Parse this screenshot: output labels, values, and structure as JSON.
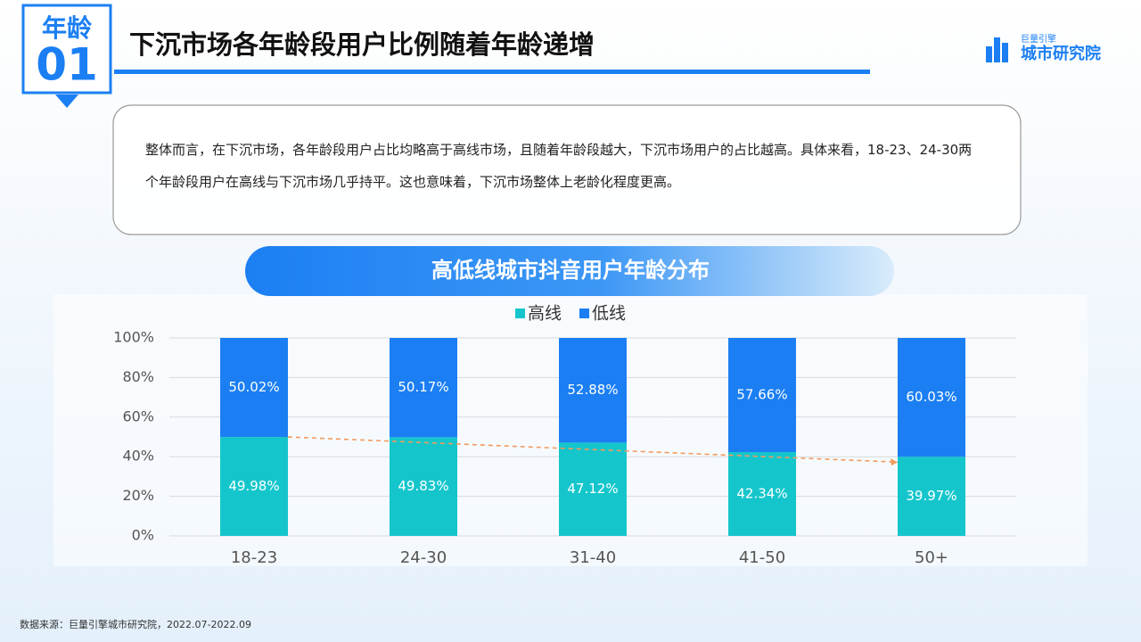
{
  "badge": {
    "label": "年龄",
    "number": "01"
  },
  "title": "下沉市场各年龄段用户比例随着年龄递增",
  "logo": {
    "top": "巨量引擎",
    "bottom": "城市研究院"
  },
  "summary": "整体而言，在下沉市场，各年龄段用户占比均略高于高线市场，且随着年龄段越大，下沉市场用户的占比越高。具体来看，18-23、24-30两个年龄段用户在高线与下沉市场几乎持平。这也意味着，下沉市场整体上老龄化程度更高。",
  "source": "数据来源：巨量引擎城市研究院，2022.07-2022.09",
  "chart_data": {
    "type": "stacked_bar",
    "title": "高低线城市抖音用户年龄分布",
    "categories": [
      "18-23",
      "24-30",
      "31-40",
      "41-50",
      "50+"
    ],
    "series": [
      {
        "name": "高线",
        "color": "#14c6cc",
        "values": [
          49.98,
          49.83,
          47.12,
          42.34,
          39.97
        ],
        "value_labels": [
          "49.98%",
          "49.83%",
          "47.12%",
          "42.34%",
          "39.97%"
        ]
      },
      {
        "name": "低线",
        "color": "#1b7ff3",
        "values": [
          50.02,
          50.17,
          52.88,
          57.66,
          60.03
        ],
        "value_labels": [
          "50.02%",
          "50.17%",
          "52.88%",
          "57.66%",
          "60.03%"
        ]
      }
    ],
    "ylim": [
      0,
      100
    ],
    "yticks": [
      {
        "value": 0,
        "label": "0%"
      },
      {
        "value": 20,
        "label": "20%"
      },
      {
        "value": 40,
        "label": "40%"
      },
      {
        "value": 60,
        "label": "60%"
      },
      {
        "value": 80,
        "label": "80%"
      },
      {
        "value": 100,
        "label": "100%"
      }
    ],
    "grid": true,
    "legend": "top",
    "trend_color": "#f39a5e"
  }
}
